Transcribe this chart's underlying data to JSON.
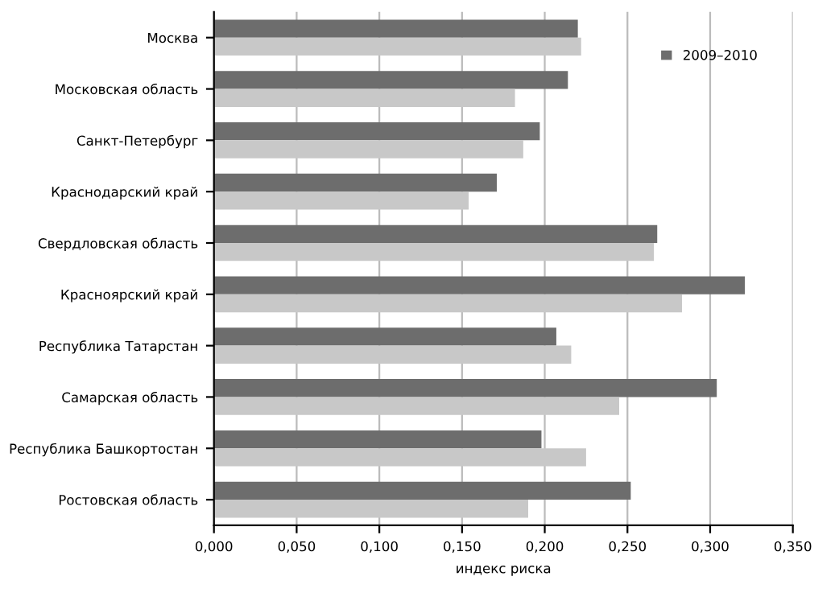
{
  "chart_data": {
    "type": "bar",
    "orientation": "horizontal",
    "xlabel": "индекс риска",
    "categories": [
      "Москва",
      "Московская область",
      "Санкт-Петербург",
      "Краснодарский край",
      "Свердловская область",
      "Красноярский край",
      "Республика Татарстан",
      "Самарская область",
      "Республика Башкортостан",
      "Ростовская область"
    ],
    "series": [
      {
        "name": "2009–2010",
        "color": "#6d6d6d",
        "values": [
          0.22,
          0.214,
          0.197,
          0.171,
          0.268,
          0.321,
          0.207,
          0.304,
          0.198,
          0.252
        ]
      },
      {
        "color": "#c8c8c8",
        "values": [
          0.222,
          0.182,
          0.187,
          0.154,
          0.266,
          0.283,
          0.216,
          0.245,
          0.225,
          0.19
        ]
      }
    ],
    "xlim": [
      0,
      0.35
    ],
    "xticks": [
      {
        "value": 0,
        "label": "0,000"
      },
      {
        "value": 0.05,
        "label": "0,050"
      },
      {
        "value": 0.1,
        "label": "0,100"
      },
      {
        "value": 0.15,
        "label": "0,150"
      },
      {
        "value": 0.2,
        "label": "0,200"
      },
      {
        "value": 0.25,
        "label": "0,250"
      },
      {
        "value": 0.3,
        "label": "0,300"
      },
      {
        "value": 0.35,
        "label": "0,350"
      }
    ],
    "grid": "x",
    "legend": "top right"
  }
}
